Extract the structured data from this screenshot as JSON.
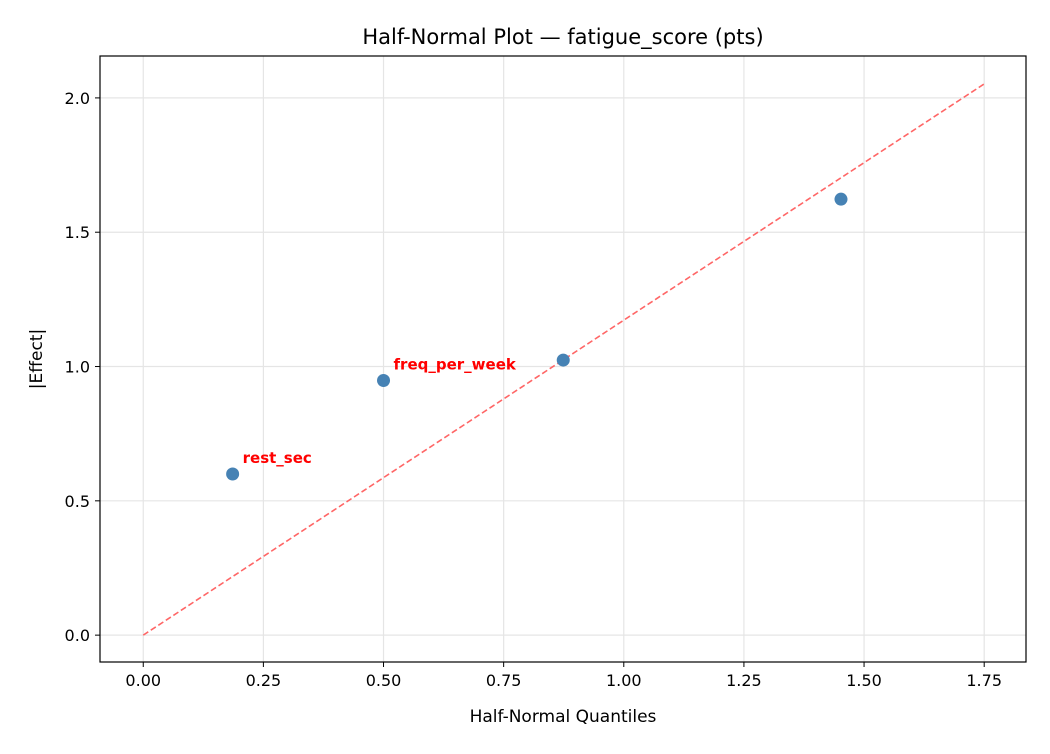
{
  "chart_data": {
    "type": "scatter",
    "title": "Half-Normal Plot — fatigue_score (pts)",
    "xlabel": "Half-Normal Quantiles",
    "ylabel": "|Effect|",
    "xlim": [
      -0.09,
      1.837
    ],
    "ylim": [
      -0.1,
      2.156
    ],
    "xticks": [
      0.0,
      0.25,
      0.5,
      0.75,
      1.0,
      1.25,
      1.5,
      1.75
    ],
    "xtick_labels": [
      "0.00",
      "0.25",
      "0.50",
      "0.75",
      "1.00",
      "1.25",
      "1.50",
      "1.75"
    ],
    "yticks": [
      0.0,
      0.5,
      1.0,
      1.5,
      2.0
    ],
    "ytick_labels": [
      "0.0",
      "0.5",
      "1.0",
      "1.5",
      "2.0"
    ],
    "grid": true,
    "points": [
      {
        "x": 0.186,
        "y": 0.6,
        "label": "rest_sec"
      },
      {
        "x": 0.5,
        "y": 0.948,
        "label": "freq_per_week"
      },
      {
        "x": 0.874,
        "y": 1.024,
        "label": ""
      },
      {
        "x": 1.452,
        "y": 1.623,
        "label": ""
      }
    ],
    "reference_line": {
      "x": [
        0,
        1.75
      ],
      "y": [
        0,
        2.052
      ],
      "style": "dashed"
    },
    "colors": {
      "points": "#4682b4",
      "line": "#ff6666",
      "labels": "#ff0000",
      "grid": "#e5e5e5"
    }
  }
}
